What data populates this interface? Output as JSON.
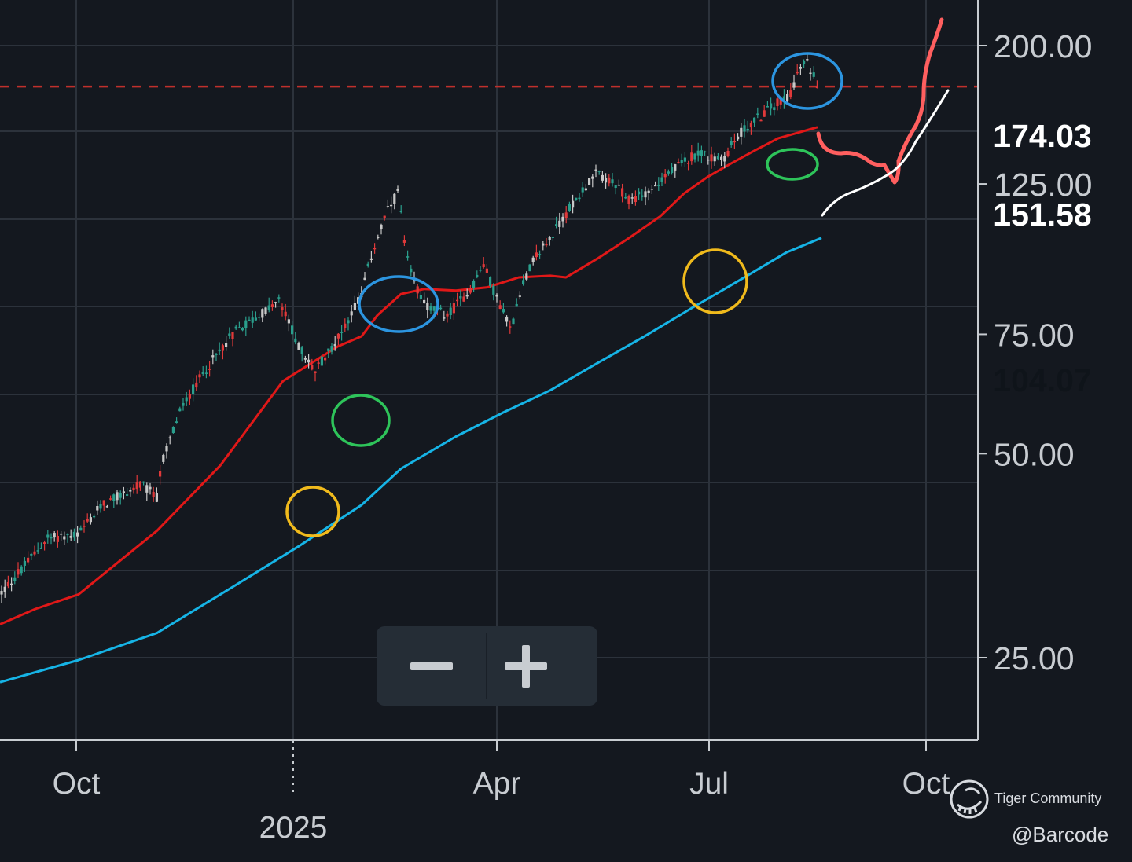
{
  "chart_data": {
    "type": "candlestick",
    "y_axis": {
      "ticks": [
        "25.00",
        "50.00",
        "75.00",
        "125.00",
        "200.00"
      ],
      "tick_values": [
        25,
        50,
        75,
        125,
        200
      ],
      "scale": "log"
    },
    "x_axis": {
      "ticks": [
        "Oct",
        "Apr",
        "Jul",
        "Oct"
      ],
      "year_label": "2025"
    },
    "price_labels": [
      {
        "value": "174.03",
        "color": "#b81c1c"
      },
      {
        "value": "151.58",
        "color": "#ee1111"
      },
      {
        "value": "104.07",
        "color": "#12b8e8"
      }
    ],
    "reference_line": {
      "value": 174.03,
      "style": "dashed",
      "color": "#c0302c"
    },
    "moving_averages": [
      {
        "color": "#e01818",
        "last": 151.58,
        "points": [
          [
            0,
            28
          ],
          [
            45,
            29.5
          ],
          [
            100,
            31
          ],
          [
            200,
            38.5
          ],
          [
            280,
            48
          ],
          [
            360,
            64
          ],
          [
            430,
            72
          ],
          [
            460,
            74.5
          ],
          [
            480,
            80
          ],
          [
            510,
            86
          ],
          [
            540,
            87.5
          ],
          [
            580,
            87
          ],
          [
            620,
            88
          ],
          [
            660,
            91
          ],
          [
            700,
            91.5
          ],
          [
            720,
            91
          ],
          [
            760,
            97
          ],
          [
            800,
            104
          ],
          [
            840,
            112
          ],
          [
            870,
            121
          ],
          [
            900,
            128
          ],
          [
            930,
            134
          ],
          [
            960,
            140
          ],
          [
            990,
            146
          ],
          [
            1040,
            151.58
          ]
        ]
      },
      {
        "color": "#16b4e6",
        "last": 104.07,
        "points": [
          [
            0,
            23
          ],
          [
            100,
            24.8
          ],
          [
            200,
            27.2
          ],
          [
            300,
            32
          ],
          [
            380,
            36.5
          ],
          [
            460,
            42
          ],
          [
            510,
            47.5
          ],
          [
            580,
            53
          ],
          [
            640,
            57.5
          ],
          [
            700,
            62
          ],
          [
            760,
            68
          ],
          [
            820,
            74.5
          ],
          [
            880,
            82
          ],
          [
            940,
            90
          ],
          [
            1000,
            99
          ],
          [
            1045,
            104.07
          ]
        ]
      }
    ],
    "candles": {
      "color_up": "#2a9e8c",
      "color_down": "#e0393a",
      "color_neutral": "#c8c8c8"
    },
    "annotations": {
      "tops": [
        {
          "cx": 507,
          "cy": 387
        },
        {
          "cx": 1027,
          "cy": 103
        }
      ],
      "breakouts": [
        {
          "cx": 459,
          "cy": 535
        },
        {
          "cx": 1008,
          "cy": 209
        }
      ],
      "pullbacks": [
        {
          "cx": 398,
          "cy": 651
        },
        {
          "cx": 910,
          "cy": 358
        }
      ],
      "colors": {
        "tops": "#2c95e0",
        "breakouts": "#2ec45a",
        "pullbacks": "#f0ba1c"
      },
      "projection_color": "#ff5f5f",
      "projection_alt_color": "#ffffff"
    }
  },
  "ui": {
    "zoom_controls": {
      "minus_icon": "minus-icon",
      "plus_icon": "plus-icon"
    },
    "watermark": {
      "brand": "Tiger Community",
      "handle": "@Barcode",
      "icon": "tiger-logo-icon"
    }
  }
}
